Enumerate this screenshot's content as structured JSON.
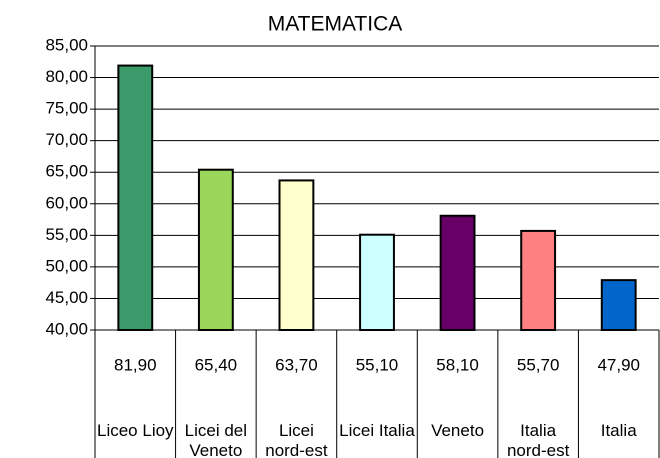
{
  "chart_data": {
    "type": "bar",
    "title": "MATEMATICA",
    "categories": [
      "Liceo Lioy",
      "Licei del Veneto",
      "Licei nord-est",
      "Licei Italia",
      "Veneto",
      "Italia nord-est",
      "Italia"
    ],
    "values": [
      81.9,
      65.4,
      63.7,
      55.1,
      58.1,
      55.7,
      47.9
    ],
    "value_labels": [
      "81,90",
      "65,40",
      "63,70",
      "55,10",
      "58,10",
      "55,70",
      "47,90"
    ],
    "colors": [
      "#3a9a6a",
      "#99d65a",
      "#ffffcc",
      "#ccffff",
      "#660066",
      "#ff8080",
      "#0066cc"
    ],
    "ylim": [
      40,
      85
    ],
    "yticks": [
      {
        "value": 40,
        "label": "40,00"
      },
      {
        "value": 45,
        "label": "45,00"
      },
      {
        "value": 50,
        "label": "50,00"
      },
      {
        "value": 55,
        "label": "55,00"
      },
      {
        "value": 60,
        "label": "60,00"
      },
      {
        "value": 65,
        "label": "65,00"
      },
      {
        "value": 70,
        "label": "70,00"
      },
      {
        "value": 75,
        "label": "75,00"
      },
      {
        "value": 80,
        "label": "80,00"
      },
      {
        "value": 85,
        "label": "85,00"
      }
    ],
    "grid": true
  }
}
